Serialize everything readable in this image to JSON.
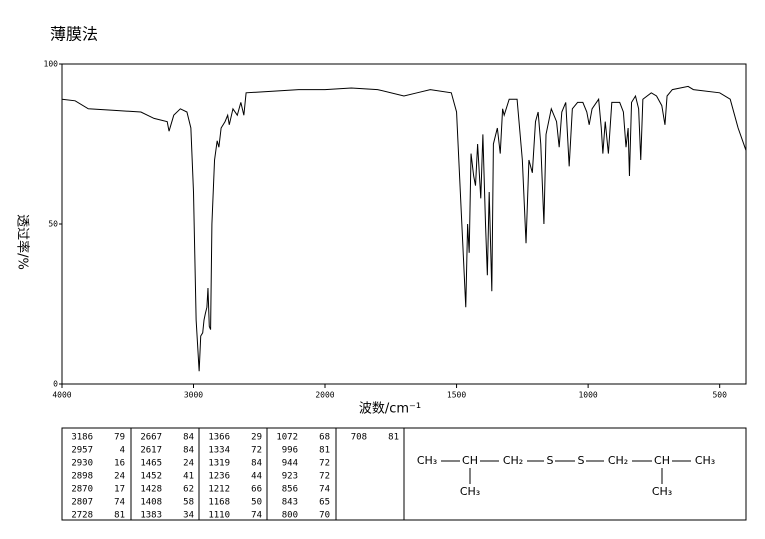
{
  "chart_data": {
    "type": "line",
    "title": "薄膜法",
    "ylabel": "透过率/%",
    "xlabel": "波数/cm⁻¹",
    "xlim": [
      4000,
      400
    ],
    "ylim": [
      0,
      100
    ],
    "x_scale_break": 2000,
    "xticks": [
      4000,
      3000,
      2000,
      1500,
      1000,
      500
    ],
    "yticks": [
      0,
      50,
      100
    ],
    "color": "#000000",
    "x": [
      4000,
      3900,
      3800,
      3600,
      3400,
      3300,
      3200,
      3186,
      3150,
      3100,
      3050,
      3020,
      3000,
      2980,
      2957,
      2945,
      2930,
      2920,
      2910,
      2898,
      2890,
      2880,
      2870,
      2860,
      2840,
      2820,
      2807,
      2790,
      2760,
      2740,
      2728,
      2700,
      2667,
      2640,
      2617,
      2600,
      2400,
      2200,
      2000,
      1900,
      1800,
      1700,
      1650,
      1600,
      1520,
      1500,
      1480,
      1465,
      1458,
      1452,
      1445,
      1435,
      1428,
      1420,
      1408,
      1400,
      1390,
      1383,
      1376,
      1366,
      1360,
      1345,
      1334,
      1325,
      1319,
      1300,
      1270,
      1250,
      1236,
      1225,
      1212,
      1200,
      1190,
      1180,
      1168,
      1160,
      1140,
      1120,
      1110,
      1100,
      1085,
      1072,
      1060,
      1040,
      1020,
      1005,
      996,
      985,
      960,
      950,
      944,
      935,
      923,
      910,
      880,
      866,
      856,
      848,
      843,
      835,
      820,
      808,
      800,
      792,
      760,
      740,
      720,
      708,
      700,
      680,
      620,
      600,
      500,
      460,
      430,
      400
    ],
    "values": [
      89,
      88.5,
      86,
      85.5,
      85,
      83,
      82,
      79,
      84,
      86,
      85,
      80,
      60,
      20,
      4,
      15,
      16,
      20,
      22,
      24,
      30,
      18,
      17,
      50,
      70,
      76,
      74,
      80,
      82,
      84,
      81,
      86,
      84,
      88,
      84,
      91,
      91.5,
      92,
      92,
      92.5,
      92,
      90,
      91,
      92,
      91,
      85,
      50,
      24,
      50,
      41,
      72,
      65,
      62,
      75,
      58,
      78,
      50,
      34,
      60,
      29,
      75,
      80,
      72,
      86,
      84,
      89,
      89,
      70,
      44,
      70,
      66,
      82,
      85,
      75,
      50,
      78,
      86,
      82,
      74,
      85,
      88,
      68,
      86,
      88,
      88,
      85,
      81,
      86,
      89,
      80,
      72,
      82,
      72,
      88,
      88,
      85,
      74,
      80,
      65,
      88,
      90,
      86,
      70,
      89,
      91,
      90,
      87,
      81,
      90,
      92,
      93,
      92,
      91,
      89,
      80,
      73
    ]
  },
  "peak_table": {
    "columns": [
      [
        [
          3186,
          79
        ],
        [
          2957,
          4
        ],
        [
          2930,
          16
        ],
        [
          2898,
          24
        ],
        [
          2870,
          17
        ],
        [
          2807,
          74
        ],
        [
          2728,
          81
        ]
      ],
      [
        [
          2667,
          84
        ],
        [
          2617,
          84
        ],
        [
          1465,
          24
        ],
        [
          1452,
          41
        ],
        [
          1428,
          62
        ],
        [
          1408,
          58
        ],
        [
          1383,
          34
        ]
      ],
      [
        [
          1366,
          29
        ],
        [
          1334,
          72
        ],
        [
          1319,
          84
        ],
        [
          1236,
          44
        ],
        [
          1212,
          66
        ],
        [
          1168,
          50
        ],
        [
          1110,
          74
        ]
      ],
      [
        [
          1072,
          68
        ],
        [
          996,
          81
        ],
        [
          944,
          72
        ],
        [
          923,
          72
        ],
        [
          856,
          74
        ],
        [
          843,
          65
        ],
        [
          800,
          70
        ]
      ],
      [
        [
          708,
          81
        ]
      ]
    ]
  },
  "structure": {
    "main": [
      "CH₃",
      "CH",
      "CH₂",
      "S",
      "S",
      "CH₂",
      "CH",
      "CH₃"
    ],
    "branches": [
      "CH₃",
      "CH₃"
    ]
  }
}
